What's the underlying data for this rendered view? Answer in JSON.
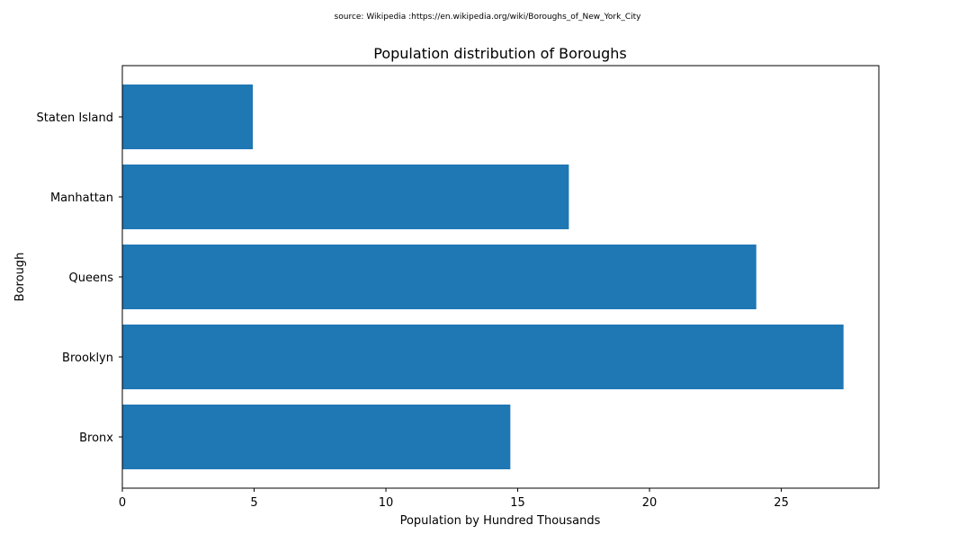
{
  "chart_data": {
    "type": "bar",
    "orientation": "horizontal",
    "source_note": "source: Wikipedia :https://en.wikipedia.org/wiki/Boroughs_of_New_York_City",
    "title": "Population distribution of Boroughs",
    "xlabel": "Population by Hundred Thousands",
    "ylabel": "Borough",
    "categories": [
      "Bronx",
      "Brooklyn",
      "Queens",
      "Manhattan",
      "Staten Island"
    ],
    "values": [
      14.72,
      27.36,
      24.05,
      16.94,
      4.95
    ],
    "xlim": [
      0,
      28.7
    ],
    "xticks": [
      0,
      5,
      10,
      15,
      20,
      25
    ],
    "bar_color": "#1f77b4",
    "grid": false,
    "legend": "none"
  }
}
